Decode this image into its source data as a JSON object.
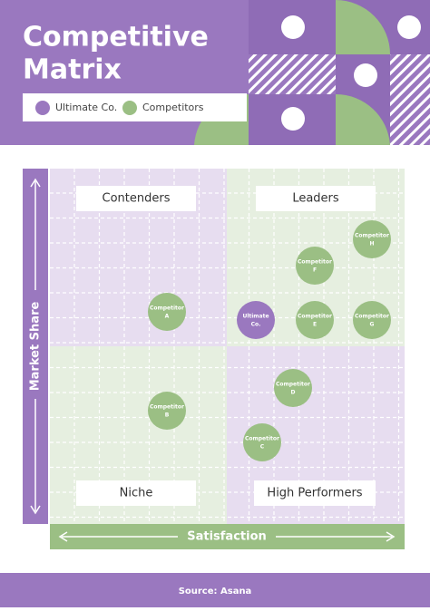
{
  "header": {
    "title": [
      "Competitive",
      "Matrix"
    ],
    "legend": [
      "Ultimate Co.",
      "Competitors"
    ]
  },
  "quadrants": [
    "Contenders",
    "Leaders",
    "Niche",
    "High Performers"
  ],
  "axes": {
    "y": "Market Share",
    "x": "Satisfaction"
  },
  "nodes": [
    {
      "label": [
        "Ultimate",
        "Co."
      ],
      "group": "Ultimate Co."
    },
    {
      "label": [
        "Competitor",
        "A"
      ],
      "group": "Competitors"
    },
    {
      "label": [
        "Competitor",
        "B"
      ],
      "group": "Competitors"
    },
    {
      "label": [
        "Competitor",
        "C"
      ],
      "group": "Competitors"
    },
    {
      "label": [
        "Competitor",
        "D"
      ],
      "group": "Competitors"
    },
    {
      "label": [
        "Competitor",
        "E"
      ],
      "group": "Competitors"
    },
    {
      "label": [
        "Competitor",
        "F"
      ],
      "group": "Competitors"
    },
    {
      "label": [
        "Competitor",
        "G"
      ],
      "group": "Competitors"
    },
    {
      "label": [
        "Competitor",
        "H"
      ],
      "group": "Competitors"
    }
  ],
  "footer": "Source: Asana"
}
